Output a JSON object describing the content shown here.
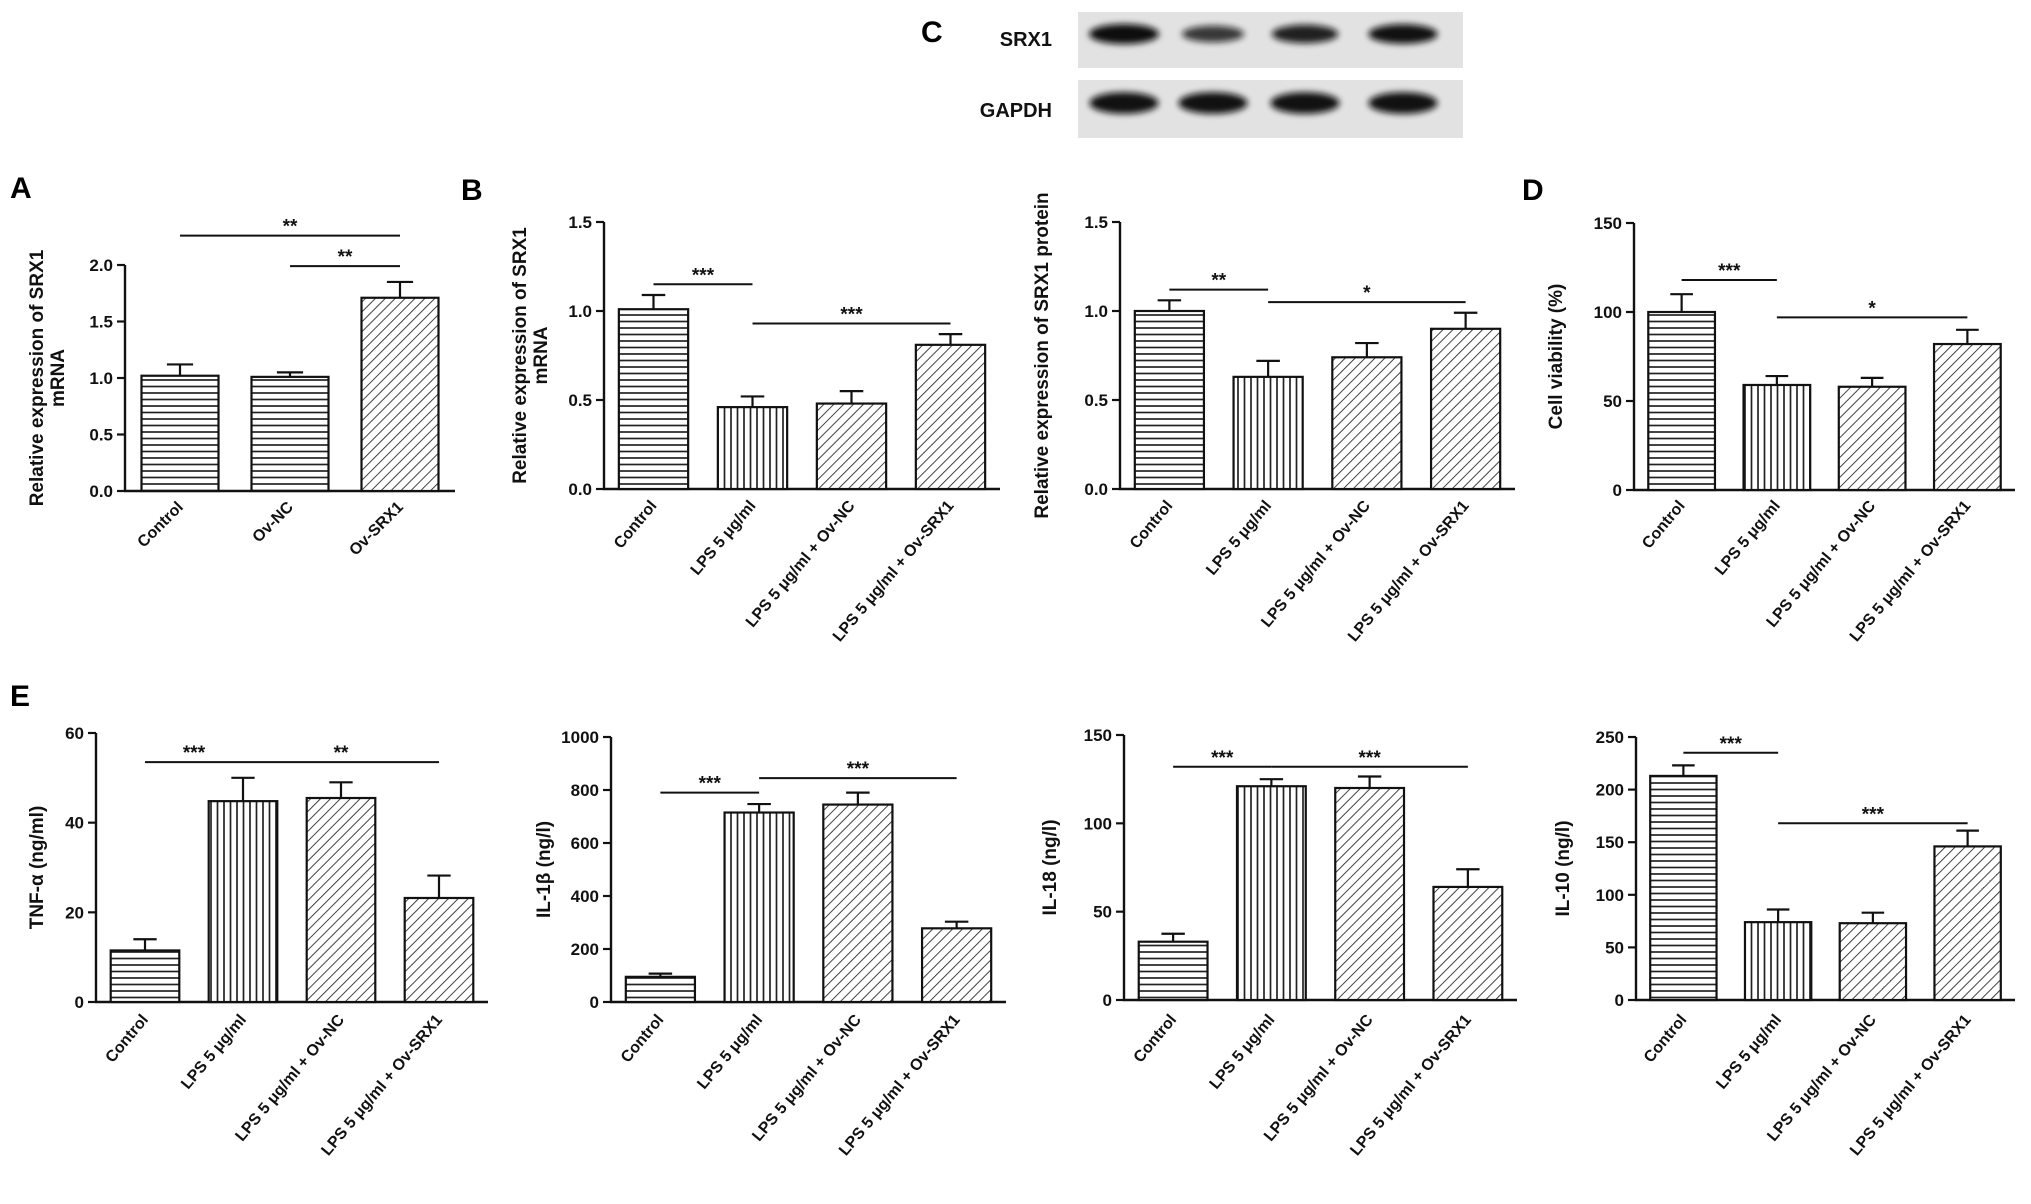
{
  "panel_letters": [
    "A",
    "B",
    "C",
    "D",
    "E"
  ],
  "blot": {
    "rows": [
      {
        "label": "SRX1",
        "intensity": [
          1.0,
          0.55,
          0.8,
          0.95
        ]
      },
      {
        "label": "GAPDH",
        "intensity": [
          0.95,
          0.95,
          0.95,
          0.95
        ]
      }
    ]
  },
  "chart_data": [
    {
      "id": "A",
      "type": "bar",
      "categories": [
        "Control",
        "Ov-NC",
        "Ov-SRX1"
      ],
      "values": [
        1.02,
        1.01,
        1.71
      ],
      "errors": [
        0.1,
        0.04,
        0.14
      ],
      "ylabel": [
        "Relative expression of SRX1",
        "mRNA"
      ],
      "ylim": [
        0,
        2.0
      ],
      "yticks": [
        "0.0",
        "0.5",
        "1.0",
        "1.5",
        "2.0"
      ],
      "patterns": [
        "hlines",
        "hlines",
        "diag"
      ],
      "significance": [
        {
          "from": 0,
          "to": 2,
          "y": 2.26,
          "label": "**"
        },
        {
          "from": 1,
          "to": 2,
          "y": 1.99,
          "label": "**"
        }
      ]
    },
    {
      "id": "B-mrna",
      "type": "bar",
      "categories": [
        "Control",
        "LPS 5 μg/ml",
        "LPS 5 μg/ml + Ov-NC",
        "LPS 5 μg/ml + Ov-SRX1"
      ],
      "values": [
        1.01,
        0.46,
        0.48,
        0.81
      ],
      "errors": [
        0.08,
        0.06,
        0.07,
        0.06
      ],
      "ylabel": [
        "Relative expression of SRX1",
        "mRNA"
      ],
      "ylim": [
        0,
        1.5
      ],
      "yticks": [
        "0.0",
        "0.5",
        "1.0",
        "1.5"
      ],
      "patterns": [
        "hlines",
        "vlines",
        "diag",
        "diag"
      ],
      "significance": [
        {
          "from": 0,
          "to": 1,
          "y": 1.15,
          "label": "***"
        },
        {
          "from": 1,
          "to": 3,
          "y": 0.93,
          "label": "***"
        }
      ]
    },
    {
      "id": "B-protein",
      "type": "bar",
      "categories": [
        "Control",
        "LPS 5 μg/ml",
        "LPS 5 μg/ml + Ov-NC",
        "LPS 5 μg/ml + Ov-SRX1"
      ],
      "values": [
        1.0,
        0.63,
        0.74,
        0.9
      ],
      "errors": [
        0.06,
        0.09,
        0.08,
        0.09
      ],
      "ylabel": [
        "Relative expression of SRX1 protein"
      ],
      "ylim": [
        0,
        1.5
      ],
      "yticks": [
        "0.0",
        "0.5",
        "1.0",
        "1.5"
      ],
      "patterns": [
        "hlines",
        "vlines",
        "diag",
        "diag"
      ],
      "significance": [
        {
          "from": 0,
          "to": 1,
          "y": 1.12,
          "label": "**"
        },
        {
          "from": 1,
          "to": 3,
          "y": 1.05,
          "label": "*"
        }
      ]
    },
    {
      "id": "D",
      "type": "bar",
      "categories": [
        "Control",
        "LPS 5 μg/ml",
        "LPS 5 μg/ml + Ov-NC",
        "LPS 5 μg/ml + Ov-SRX1"
      ],
      "values": [
        100,
        59,
        58,
        82
      ],
      "errors": [
        10,
        5,
        5,
        8
      ],
      "ylabel": [
        "Cell viability (%)"
      ],
      "ylim": [
        0,
        150
      ],
      "yticks": [
        "0",
        "50",
        "100",
        "150"
      ],
      "patterns": [
        "hlines",
        "vlines",
        "diag",
        "diag"
      ],
      "significance": [
        {
          "from": 0,
          "to": 1,
          "y": 118,
          "label": "***"
        },
        {
          "from": 1,
          "to": 3,
          "y": 97,
          "label": "*"
        }
      ]
    },
    {
      "id": "E-tnf",
      "type": "bar",
      "categories": [
        "Control",
        "LPS 5 μg/ml",
        "LPS 5 μg/ml + Ov-NC",
        "LPS 5 μg/ml + Ov-SRX1"
      ],
      "values": [
        11.5,
        44.8,
        45.5,
        23.2
      ],
      "errors": [
        2.5,
        5.2,
        3.5,
        5.0
      ],
      "ylabel": [
        "TNF-α (ng/ml)"
      ],
      "ylim": [
        0,
        60
      ],
      "yticks": [
        "0",
        "20",
        "40",
        "60"
      ],
      "patterns": [
        "hlines",
        "vlines",
        "diag",
        "diag"
      ],
      "significance": [
        {
          "from": 0,
          "to": 1,
          "y": 53.5,
          "label": "***"
        },
        {
          "from": 1,
          "to": 3,
          "y": 53.5,
          "label": "**"
        }
      ]
    },
    {
      "id": "E-il1b",
      "type": "bar",
      "categories": [
        "Control",
        "LPS 5 μg/ml",
        "LPS 5 μg/ml + Ov-NC",
        "LPS 5 μg/ml + Ov-SRX1"
      ],
      "values": [
        95,
        715,
        745,
        278
      ],
      "errors": [
        12,
        32,
        45,
        25
      ],
      "ylabel": [
        "IL-1β (ng/l)"
      ],
      "ylim": [
        0,
        1000
      ],
      "yticks": [
        "0",
        "200",
        "400",
        "600",
        "800",
        "1000"
      ],
      "patterns": [
        "hlines",
        "vlines",
        "diag",
        "diag"
      ],
      "significance": [
        {
          "from": 0,
          "to": 1,
          "y": 790,
          "label": "***"
        },
        {
          "from": 1,
          "to": 3,
          "y": 845,
          "label": "***"
        }
      ]
    },
    {
      "id": "E-il18",
      "type": "bar",
      "categories": [
        "Control",
        "LPS 5 μg/ml",
        "LPS 5 μg/ml + Ov-NC",
        "LPS 5 μg/ml + Ov-SRX1"
      ],
      "values": [
        33,
        121,
        120,
        64
      ],
      "errors": [
        4.5,
        4,
        6.5,
        10
      ],
      "ylabel": [
        "IL-18 (ng/l)"
      ],
      "ylim": [
        0,
        150
      ],
      "yticks": [
        "0",
        "50",
        "100",
        "150"
      ],
      "patterns": [
        "hlines",
        "vlines",
        "diag",
        "diag"
      ],
      "significance": [
        {
          "from": 0,
          "to": 1,
          "y": 132,
          "label": "***"
        },
        {
          "from": 1,
          "to": 3,
          "y": 132,
          "label": "***"
        }
      ]
    },
    {
      "id": "E-il10",
      "type": "bar",
      "categories": [
        "Control",
        "LPS 5 μg/ml",
        "LPS 5 μg/ml + Ov-NC",
        "LPS 5 μg/ml + Ov-SRX1"
      ],
      "values": [
        213,
        74,
        73,
        146
      ],
      "errors": [
        10,
        12,
        10,
        15
      ],
      "ylabel": [
        "IL-10 (ng/l)"
      ],
      "ylim": [
        0,
        250
      ],
      "yticks": [
        "0",
        "50",
        "100",
        "150",
        "200",
        "250"
      ],
      "patterns": [
        "hlines",
        "vlines",
        "diag",
        "diag"
      ],
      "significance": [
        {
          "from": 0,
          "to": 1,
          "y": 235,
          "label": "***"
        },
        {
          "from": 1,
          "to": 3,
          "y": 168,
          "label": "***"
        }
      ]
    }
  ]
}
